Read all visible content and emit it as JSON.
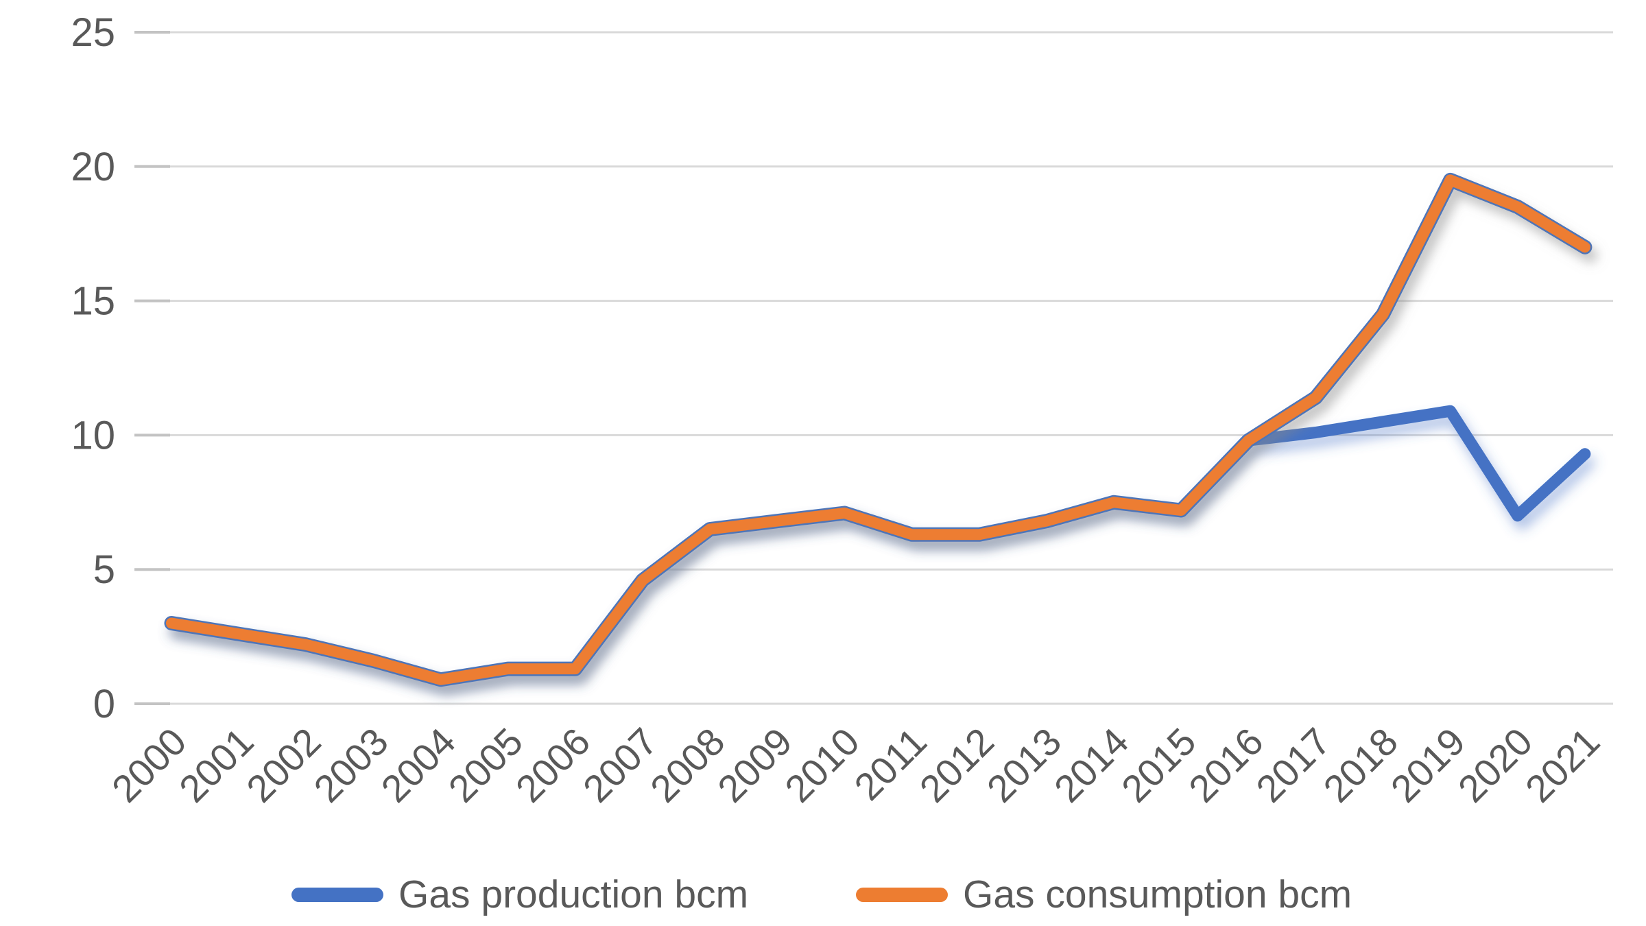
{
  "chart_data": {
    "type": "line",
    "title": "",
    "xlabel": "",
    "ylabel": "",
    "categories": [
      "2000",
      "2001",
      "2002",
      "2003",
      "2004",
      "2005",
      "2006",
      "2007",
      "2008",
      "2009",
      "2010",
      "2011",
      "2012",
      "2013",
      "2014",
      "2015",
      "2016",
      "2017",
      "2018",
      "2019",
      "2020",
      "2021"
    ],
    "series": [
      {
        "name": "Gas production bcm",
        "color": "#4472C4",
        "values": [
          3.0,
          2.6,
          2.2,
          1.6,
          0.9,
          1.3,
          1.3,
          4.6,
          6.5,
          6.8,
          7.1,
          6.3,
          6.3,
          6.8,
          7.5,
          7.2,
          9.8,
          10.1,
          10.5,
          10.9,
          7.0,
          9.3
        ]
      },
      {
        "name": "Gas consumption bcm",
        "color": "#ED7D31",
        "values": [
          3.0,
          2.6,
          2.2,
          1.6,
          0.9,
          1.3,
          1.3,
          4.6,
          6.5,
          6.8,
          7.1,
          6.3,
          6.3,
          6.8,
          7.5,
          7.2,
          9.8,
          11.4,
          14.5,
          19.5,
          18.5,
          17.0
        ]
      }
    ],
    "ylim": [
      0,
      25
    ],
    "yticks": [
      "0",
      "5",
      "10",
      "15",
      "20",
      "25"
    ],
    "grid": true,
    "gridline_color": "#d9d9d9",
    "tick_stub_color": "#c3c3c3",
    "axis_label_color": "#595959",
    "line_edge_color": "#4E74B8",
    "legend_position": "bottom"
  },
  "legend": {
    "items": [
      {
        "label": "Gas production bcm",
        "color": "#4472C4"
      },
      {
        "label": "Gas consumption bcm",
        "color": "#ED7D31"
      }
    ]
  }
}
